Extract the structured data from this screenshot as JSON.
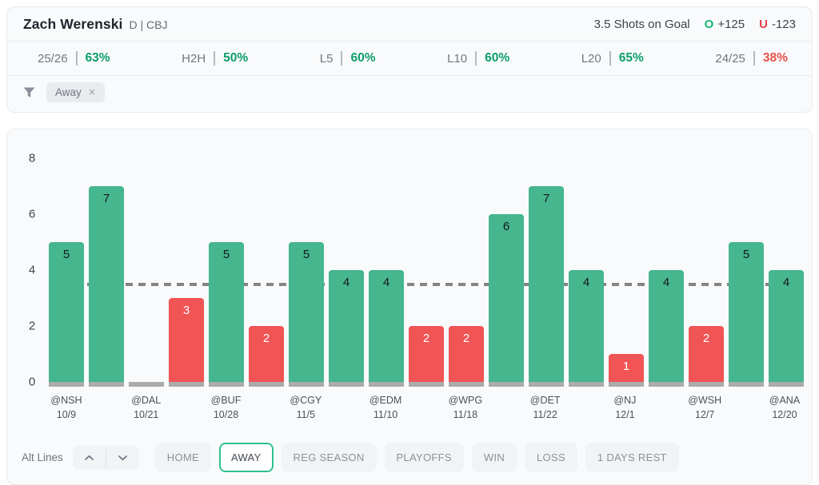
{
  "header": {
    "player_name": "Zach Werenski",
    "player_meta": "D | CBJ",
    "prop_label": "3.5 Shots on Goal",
    "over_letter": "O",
    "over_odds": "+125",
    "under_letter": "U",
    "under_odds": "-123"
  },
  "stats": [
    {
      "label": "25/26",
      "value": "63%",
      "status": "over"
    },
    {
      "label": "H2H",
      "value": "50%",
      "status": "over"
    },
    {
      "label": "L5",
      "value": "60%",
      "status": "over"
    },
    {
      "label": "L10",
      "value": "60%",
      "status": "over"
    },
    {
      "label": "L20",
      "value": "65%",
      "status": "over"
    },
    {
      "label": "24/25",
      "value": "38%",
      "status": "under"
    }
  ],
  "filters": {
    "chips": [
      {
        "label": "Away",
        "close_icon": "×"
      }
    ]
  },
  "chart_data": {
    "type": "bar",
    "title": "",
    "xlabel": "",
    "ylabel": "",
    "ylim": [
      0,
      8
    ],
    "yticks": [
      0,
      2,
      4,
      6,
      8
    ],
    "grid": false,
    "threshold_line": 3.5,
    "bars": [
      {
        "value": 5,
        "result": "over",
        "label": "@NSH",
        "date": "10/9"
      },
      {
        "value": 7,
        "result": "over",
        "label": "",
        "date": ""
      },
      {
        "value": 0,
        "result": "none",
        "label": "@DAL",
        "date": "10/21"
      },
      {
        "value": 3,
        "result": "under",
        "label": "",
        "date": ""
      },
      {
        "value": 5,
        "result": "over",
        "label": "@BUF",
        "date": "10/28"
      },
      {
        "value": 2,
        "result": "under",
        "label": "",
        "date": ""
      },
      {
        "value": 5,
        "result": "over",
        "label": "@CGY",
        "date": "11/5"
      },
      {
        "value": 4,
        "result": "over",
        "label": "",
        "date": ""
      },
      {
        "value": 4,
        "result": "over",
        "label": "@EDM",
        "date": "11/10"
      },
      {
        "value": 2,
        "result": "under",
        "label": "",
        "date": ""
      },
      {
        "value": 2,
        "result": "under",
        "label": "@WPG",
        "date": "11/18"
      },
      {
        "value": 6,
        "result": "over",
        "label": "",
        "date": ""
      },
      {
        "value": 7,
        "result": "over",
        "label": "@DET",
        "date": "11/22"
      },
      {
        "value": 4,
        "result": "over",
        "label": "",
        "date": ""
      },
      {
        "value": 1,
        "result": "under",
        "label": "@NJ",
        "date": "12/1"
      },
      {
        "value": 4,
        "result": "over",
        "label": "",
        "date": ""
      },
      {
        "value": 2,
        "result": "under",
        "label": "@WSH",
        "date": "12/7"
      },
      {
        "value": 5,
        "result": "over",
        "label": "",
        "date": ""
      },
      {
        "value": 4,
        "result": "over",
        "label": "@ANA",
        "date": "12/20"
      }
    ],
    "colors": {
      "over": "#45b68e",
      "under": "#f05455",
      "none": "#ababab",
      "base": "#ababab",
      "threshold": "#848484"
    },
    "legend": null
  },
  "toolbar": {
    "alt_lines_label": "Alt Lines",
    "filter_buttons": [
      {
        "label": "HOME",
        "selected": false
      },
      {
        "label": "AWAY",
        "selected": true
      },
      {
        "label": "REG SEASON",
        "selected": false
      },
      {
        "label": "PLAYOFFS",
        "selected": false
      },
      {
        "label": "WIN",
        "selected": false
      },
      {
        "label": "LOSS",
        "selected": false
      },
      {
        "label": "1 DAYS REST",
        "selected": false
      }
    ]
  }
}
